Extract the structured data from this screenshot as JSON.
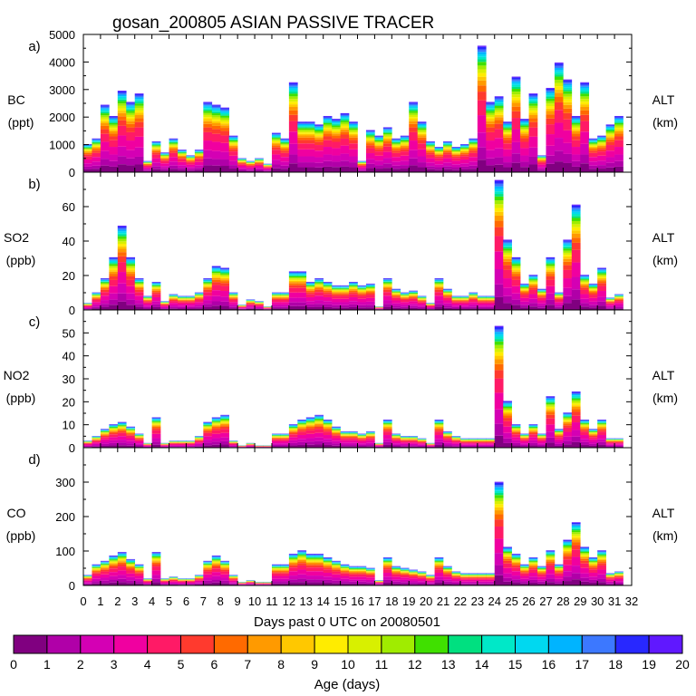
{
  "chart_data": {
    "title": "gosan_200805 ASIAN PASSIVE TRACER",
    "type": "area",
    "stacked": true,
    "xlabel": "Days past 0 UTC on 20080501",
    "x_ticks": [
      "0",
      "1",
      "2",
      "3",
      "4",
      "5",
      "6",
      "7",
      "8",
      "9",
      "10",
      "11",
      "12",
      "13",
      "14",
      "15",
      "16",
      "17",
      "18",
      "19",
      "20",
      "21",
      "22",
      "23",
      "24",
      "25",
      "26",
      "27",
      "28",
      "29",
      "30",
      "31",
      "32"
    ],
    "xlim": [
      0,
      32
    ],
    "x": [
      0,
      0.5,
      1,
      1.5,
      2,
      2.5,
      3,
      3.5,
      4,
      4.5,
      5,
      5.5,
      6,
      6.5,
      7,
      7.5,
      8,
      8.5,
      9,
      9.5,
      10,
      10.5,
      11,
      11.5,
      12,
      12.5,
      13,
      13.5,
      14,
      14.5,
      15,
      15.5,
      16,
      16.5,
      17,
      17.5,
      18,
      18.5,
      19,
      19.5,
      20,
      20.5,
      21,
      21.5,
      22,
      22.5,
      23,
      23.5,
      24,
      24.5,
      25,
      25.5,
      26,
      26.5,
      27,
      27.5,
      28,
      28.5,
      29,
      29.5,
      30,
      30.5,
      31
    ],
    "colorbar": {
      "label": "Age (days)",
      "ticks": [
        "0",
        "1",
        "2",
        "3",
        "4",
        "5",
        "6",
        "7",
        "8",
        "9",
        "10",
        "11",
        "12",
        "13",
        "14",
        "15",
        "16",
        "17",
        "18",
        "19",
        "20"
      ],
      "colors": [
        "#800080",
        "#b000a8",
        "#d400b4",
        "#f000a0",
        "#ff1a66",
        "#ff3a2e",
        "#ff6a00",
        "#ff9a00",
        "#ffc800",
        "#ffec00",
        "#d8f000",
        "#a0ec00",
        "#40e000",
        "#00e080",
        "#00e8c8",
        "#00d8f0",
        "#00b4ff",
        "#3c78ff",
        "#2828ff",
        "#6018ff"
      ]
    },
    "panels": [
      {
        "id": "a",
        "letter": "a)",
        "species": "BC",
        "unit": "(ppt)",
        "right_label": "ALT",
        "right_unit": "(km)",
        "ylim": [
          0,
          5000
        ],
        "y_ticks": [
          "0",
          "1000",
          "2000",
          "3000",
          "4000",
          "5000"
        ],
        "values": [
          1000,
          1200,
          2400,
          2000,
          2900,
          2500,
          2800,
          400,
          1100,
          700,
          1200,
          800,
          600,
          800,
          2500,
          2400,
          2300,
          1300,
          500,
          400,
          500,
          300,
          1400,
          1200,
          3200,
          1800,
          1800,
          1700,
          2000,
          1900,
          2100,
          1800,
          400,
          1500,
          1300,
          1600,
          1200,
          1300,
          2500,
          1800,
          1100,
          900,
          1100,
          900,
          1000,
          1200,
          4500,
          2500,
          2700,
          1800,
          3400,
          1900,
          2800,
          600,
          3000,
          3900,
          3300,
          2000,
          3200,
          1200,
          1300,
          1700,
          2000
        ]
      },
      {
        "id": "b",
        "letter": "b)",
        "species": "SO2",
        "unit": "(ppb)",
        "right_label": "ALT",
        "right_unit": "(km)",
        "ylim": [
          0,
          80
        ],
        "y_ticks": [
          "0",
          "20",
          "40",
          "60"
        ],
        "values": [
          4,
          10,
          18,
          30,
          48,
          30,
          18,
          8,
          16,
          5,
          9,
          8,
          8,
          10,
          18,
          25,
          24,
          10,
          3,
          6,
          5,
          2,
          10,
          10,
          22,
          22,
          16,
          18,
          16,
          14,
          14,
          16,
          14,
          15,
          2,
          18,
          12,
          10,
          11,
          8,
          4,
          18,
          12,
          8,
          8,
          10,
          8,
          8,
          74,
          40,
          30,
          15,
          20,
          12,
          30,
          10,
          40,
          60,
          20,
          15,
          24,
          7,
          9
        ]
      },
      {
        "id": "c",
        "letter": "c)",
        "species": "NO2",
        "unit": "(ppb)",
        "right_label": "ALT",
        "right_unit": "(km)",
        "ylim": [
          0,
          60
        ],
        "y_ticks": [
          "0",
          "10",
          "20",
          "30",
          "40",
          "50"
        ],
        "values": [
          3,
          5,
          8,
          10,
          11,
          9,
          6,
          2,
          13,
          2,
          3,
          3,
          3,
          5,
          11,
          13,
          14,
          3,
          1,
          2,
          1,
          1,
          6,
          6,
          10,
          12,
          13,
          14,
          12,
          9,
          7,
          7,
          6,
          7,
          2,
          12,
          6,
          5,
          5,
          4,
          2,
          12,
          7,
          5,
          4,
          4,
          4,
          4,
          52,
          20,
          10,
          6,
          10,
          6,
          22,
          8,
          15,
          24,
          12,
          8,
          12,
          4,
          4
        ]
      },
      {
        "id": "d",
        "letter": "d)",
        "species": "CO",
        "unit": "(ppb)",
        "right_label": "ALT",
        "right_unit": "(km)",
        "ylim": [
          0,
          400
        ],
        "y_ticks": [
          "0",
          "100",
          "200",
          "300"
        ],
        "values": [
          30,
          60,
          70,
          85,
          95,
          75,
          60,
          20,
          95,
          20,
          25,
          20,
          20,
          30,
          70,
          85,
          70,
          30,
          10,
          15,
          10,
          10,
          60,
          60,
          90,
          100,
          90,
          90,
          80,
          70,
          60,
          55,
          55,
          50,
          15,
          80,
          55,
          50,
          45,
          40,
          30,
          80,
          55,
          40,
          35,
          35,
          35,
          35,
          295,
          110,
          90,
          60,
          80,
          55,
          100,
          60,
          130,
          180,
          110,
          80,
          100,
          35,
          40
        ]
      }
    ]
  }
}
